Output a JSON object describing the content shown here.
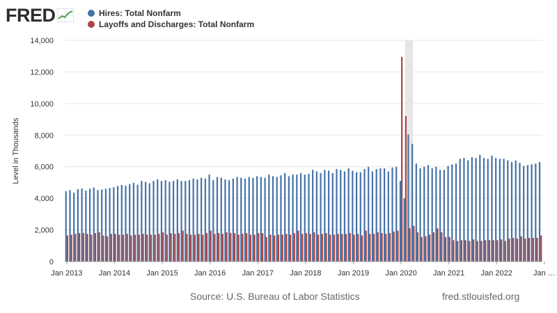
{
  "header": {
    "logo_text": "FRED",
    "logo_icon": "line-graph-icon"
  },
  "legend": [
    {
      "name": "Hires: Total Nonfarm",
      "color": "#4572a7"
    },
    {
      "name": "Layoffs and Discharges: Total Nonfarm",
      "color": "#aa4643"
    }
  ],
  "footer": {
    "source": "Source: U.S. Bureau of Labor Statistics",
    "credit": "fred.stlouisfed.org"
  },
  "chart_data": {
    "type": "bar",
    "title": "",
    "xlabel": "",
    "ylabel": "Level in Thousands",
    "ylim": [
      0,
      14000
    ],
    "yticks": [
      0,
      2000,
      4000,
      6000,
      8000,
      10000,
      12000,
      14000
    ],
    "ytick_labels": [
      "0",
      "2,000",
      "4,000",
      "6,000",
      "8,000",
      "10,000",
      "12,000",
      "14,000"
    ],
    "xtick_labels": [
      "Jan 2013",
      "Jan 2014",
      "Jan 2015",
      "Jan 2016",
      "Jan 2017",
      "Jan 2018",
      "Jan 2019",
      "Jan 2020",
      "Jan 2021",
      "Jan 2022",
      "Jan …"
    ],
    "x_start": "2013-01",
    "frequency": "monthly",
    "grid": true,
    "legend_position": "top-left",
    "recession_shading": [
      "2020-02",
      "2020-04"
    ],
    "series": [
      {
        "name": "Hires: Total Nonfarm",
        "color": "#4572a7",
        "values": [
          4450,
          4520,
          4360,
          4580,
          4620,
          4490,
          4600,
          4680,
          4520,
          4560,
          4600,
          4650,
          4700,
          4780,
          4840,
          4800,
          4900,
          4980,
          4860,
          5100,
          5040,
          4950,
          5100,
          5200,
          5100,
          5150,
          5050,
          5100,
          5200,
          5100,
          5100,
          5150,
          5250,
          5200,
          5300,
          5250,
          5500,
          5150,
          5350,
          5300,
          5200,
          5150,
          5250,
          5350,
          5300,
          5250,
          5350,
          5300,
          5400,
          5350,
          5300,
          5500,
          5400,
          5350,
          5450,
          5600,
          5400,
          5500,
          5500,
          5600,
          5500,
          5550,
          5800,
          5700,
          5600,
          5800,
          5750,
          5600,
          5850,
          5800,
          5700,
          5900,
          5750,
          5650,
          5650,
          5850,
          6000,
          5700,
          5850,
          5900,
          5900,
          5700,
          5950,
          6000,
          5100,
          4000,
          8050,
          7450,
          6200,
          5900,
          6000,
          6100,
          5900,
          6000,
          5800,
          5800,
          6050,
          6150,
          6200,
          6500,
          6550,
          6400,
          6600,
          6550,
          6750,
          6550,
          6500,
          6700,
          6550,
          6500,
          6500,
          6400,
          6300,
          6400,
          6250,
          6050,
          6100,
          6150,
          6200,
          6300
        ]
      },
      {
        "name": "Layoffs and Discharges: Total Nonfarm",
        "color": "#aa4643",
        "values": [
          1650,
          1700,
          1750,
          1800,
          1800,
          1750,
          1700,
          1800,
          1850,
          1650,
          1600,
          1750,
          1750,
          1700,
          1700,
          1750,
          1650,
          1700,
          1700,
          1750,
          1700,
          1700,
          1700,
          1750,
          1850,
          1700,
          1800,
          1750,
          1800,
          1950,
          1750,
          1700,
          1700,
          1750,
          1700,
          1800,
          1950,
          1750,
          1800,
          1750,
          1850,
          1800,
          1800,
          1700,
          1750,
          1800,
          1700,
          1700,
          1800,
          1800,
          1550,
          1700,
          1650,
          1700,
          1700,
          1750,
          1700,
          1800,
          1950,
          1750,
          1800,
          1750,
          1850,
          1700,
          1750,
          1800,
          1700,
          1700,
          1750,
          1750,
          1750,
          1800,
          1700,
          1750,
          1650,
          1950,
          1750,
          1750,
          1850,
          1800,
          1750,
          1800,
          1900,
          1950,
          12950,
          9200,
          2100,
          2250,
          1850,
          1550,
          1600,
          1700,
          1850,
          2100,
          1850,
          1550,
          1550,
          1350,
          1300,
          1350,
          1350,
          1300,
          1400,
          1300,
          1300,
          1350,
          1350,
          1350,
          1350,
          1400,
          1300,
          1450,
          1500,
          1450,
          1600,
          1450,
          1500,
          1500,
          1500,
          1650
        ]
      }
    ]
  }
}
